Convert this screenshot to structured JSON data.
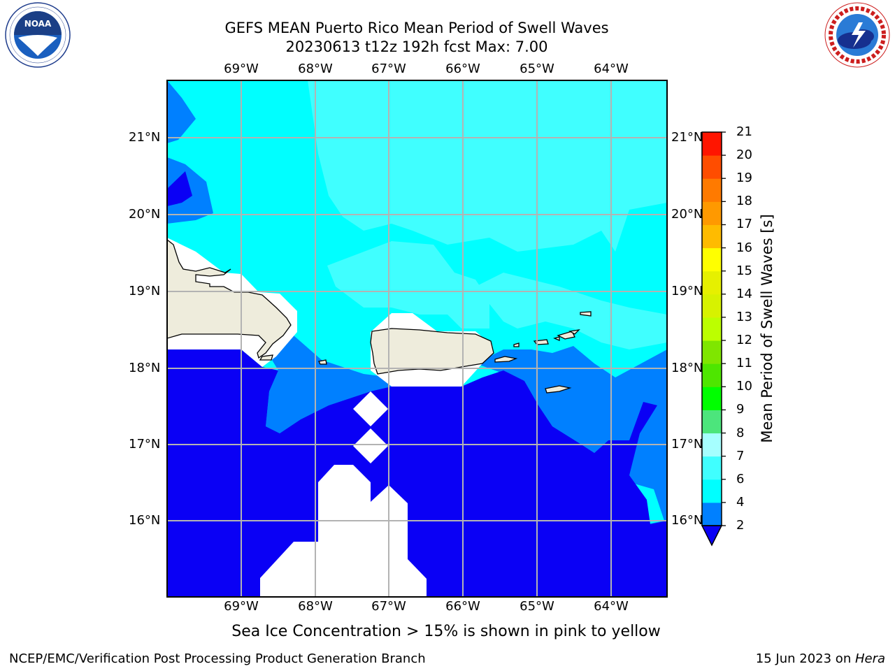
{
  "header": {
    "title_line1": "GEFS MEAN Puerto Rico Mean Period of Swell Waves",
    "title_line2": "20230613 t12z 192h fcst   Max: 7.00"
  },
  "logos": {
    "left": {
      "name": "NOAA",
      "ring_text": "NATIONAL OCEANIC AND ATMOSPHERIC ADMINISTRATION • U.S. DEPARTMENT OF COMMERCE"
    },
    "right": {
      "name": "NATIONAL WEATHER SERVICE"
    }
  },
  "map": {
    "lon_labels": [
      "69°W",
      "68°W",
      "67°W",
      "66°W",
      "65°W",
      "64°W"
    ],
    "lat_labels": [
      "21°N",
      "20°N",
      "19°N",
      "18°N",
      "17°N",
      "16°N"
    ],
    "colors": {
      "land": "#eeecdc",
      "missing": "#ffffff",
      "grid": "#b3b3b3",
      "coast": "#000000"
    }
  },
  "colorbar": {
    "label": "Mean Period of Swell Waves [s]",
    "tick_labels": [
      "2",
      "4",
      "6",
      "7",
      "8",
      "9",
      "10",
      "11",
      "12",
      "13",
      "14",
      "15",
      "16",
      "17",
      "18",
      "19",
      "20",
      "21"
    ],
    "colors": [
      "#0a00f5",
      "#0080ff",
      "#00ffff",
      "#40ffff",
      "#a6ffff",
      "#4ce57c",
      "#00ff00",
      "#4ee600",
      "#7fe600",
      "#bcff00",
      "#d7f200",
      "#e6f000",
      "#ffff00",
      "#ffbb00",
      "#ff9900",
      "#ff7a00",
      "#ff4d00",
      "#ff1500",
      "#ff0000"
    ]
  },
  "note": "Sea Ice Concentration > 15% is shown in pink to yellow",
  "footer": {
    "left": "NCEP/EMC/Verification Post Processing Product Generation Branch",
    "right_prefix": "15 Jun 2023 on ",
    "right_machine": "Hera"
  }
}
